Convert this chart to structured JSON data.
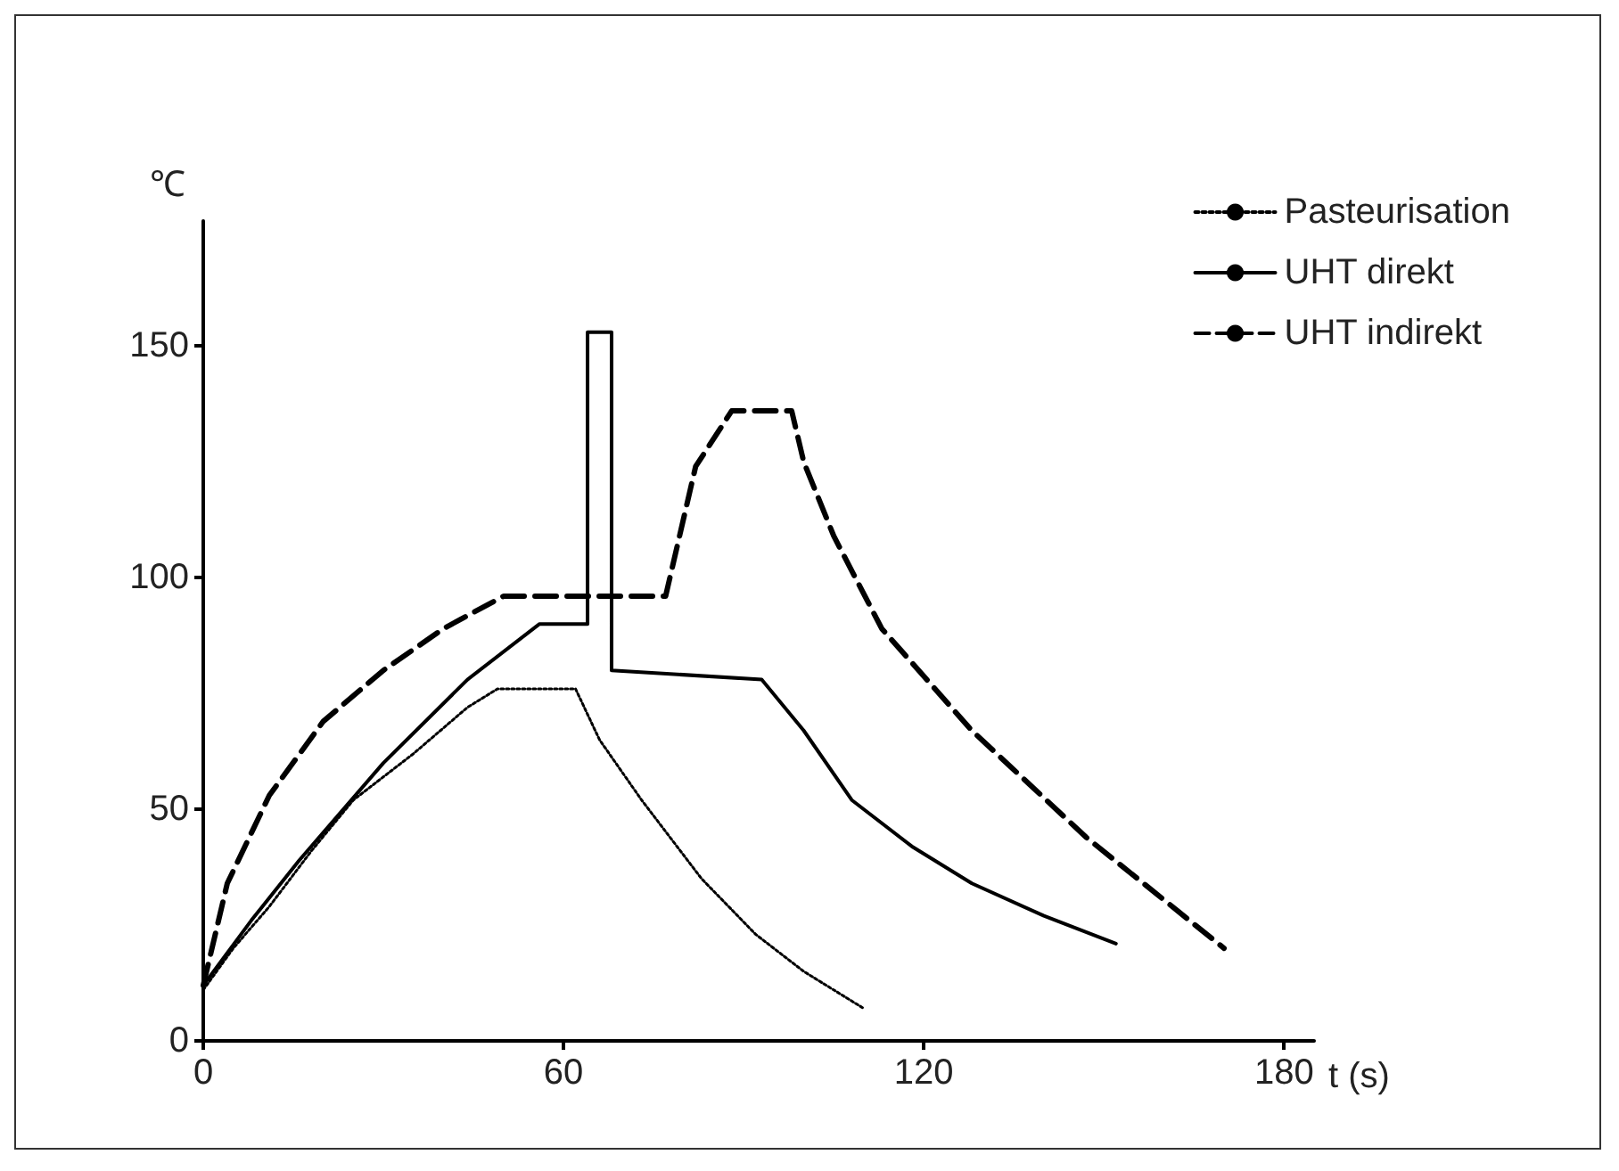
{
  "chart_data": {
    "type": "line",
    "xlabel": "t (s)",
    "ylabel": "℃",
    "xlim": [
      0,
      185
    ],
    "xticks": [
      0,
      60,
      120,
      180
    ],
    "ylim": [
      0,
      177
    ],
    "yticks": [
      0,
      50,
      100,
      150
    ],
    "grid": false,
    "legend": "top right",
    "marker": "none",
    "series": [
      {
        "name": "Pasteurisation",
        "color": "#000000",
        "line_style": "dotted",
        "x": [
          0,
          5,
          11,
          18,
          25,
          35,
          44,
          49,
          62,
          66,
          73,
          83,
          92,
          100,
          110
        ],
        "values": [
          11,
          20,
          29,
          41,
          52,
          62,
          72,
          76,
          76,
          65,
          52,
          35,
          23,
          15,
          7
        ]
      },
      {
        "name": "UHT direkt",
        "color": "#000000",
        "line_style": "solid",
        "x": [
          0,
          8,
          16,
          30,
          44,
          56,
          64,
          64,
          68,
          68,
          93,
          100,
          108,
          118,
          128,
          140,
          152
        ],
        "values": [
          12,
          26,
          39,
          60,
          78,
          90,
          90,
          153,
          153,
          80,
          78,
          67,
          52,
          42,
          34,
          27,
          21
        ]
      },
      {
        "name": "UHT indirekt",
        "color": "#000000",
        "line_style": "dashed",
        "x": [
          0,
          4,
          11,
          20,
          30,
          40,
          50,
          77,
          82,
          88,
          98,
          100,
          105,
          113,
          128,
          147,
          170
        ],
        "values": [
          12,
          34,
          53,
          69,
          80,
          89,
          96,
          96,
          124,
          136,
          136,
          125,
          109,
          89,
          67,
          44,
          20
        ]
      }
    ]
  }
}
